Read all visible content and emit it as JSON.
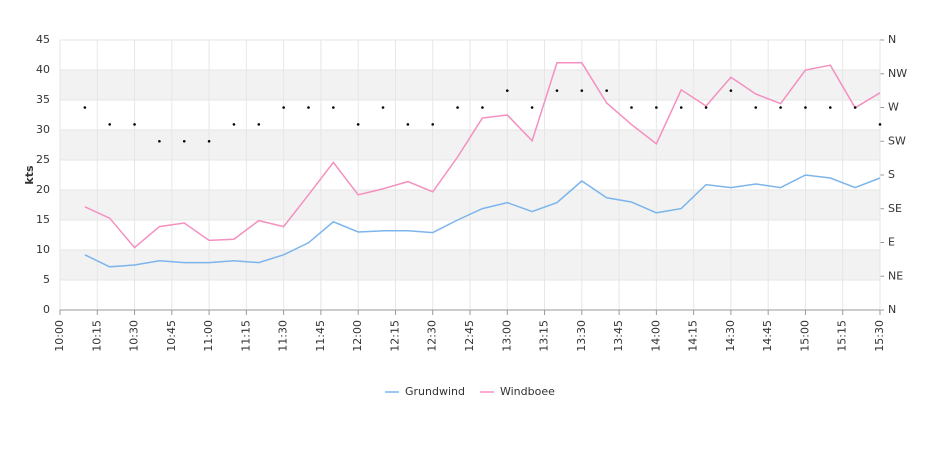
{
  "chart_data": {
    "type": "line",
    "y_label": "kts",
    "x": [
      "10:10",
      "10:20",
      "10:30",
      "10:40",
      "10:50",
      "11:00",
      "11:10",
      "11:20",
      "11:30",
      "11:40",
      "11:50",
      "12:00",
      "12:10",
      "12:20",
      "12:30",
      "12:40",
      "12:50",
      "13:00",
      "13:10",
      "13:20",
      "13:30",
      "13:40",
      "13:50",
      "14:00",
      "14:10",
      "14:20",
      "14:30",
      "14:40",
      "14:50",
      "15:00",
      "15:10",
      "15:20",
      "15:30"
    ],
    "xlim": [
      "10:00",
      "15:30"
    ],
    "xticks": [
      "10:00",
      "10:15",
      "10:30",
      "10:45",
      "11:00",
      "11:15",
      "11:30",
      "11:45",
      "12:00",
      "12:15",
      "12:30",
      "12:45",
      "13:00",
      "13:15",
      "13:30",
      "13:45",
      "14:00",
      "14:15",
      "14:30",
      "14:45",
      "15:00",
      "15:15",
      "15:30"
    ],
    "ylim": [
      0,
      45
    ],
    "yticks": [
      0,
      5,
      10,
      15,
      20,
      25,
      30,
      35,
      40,
      45
    ],
    "y2lim": [
      0,
      360
    ],
    "y2ticks": [
      {
        "value": 0,
        "label": "N"
      },
      {
        "value": 45,
        "label": "NE"
      },
      {
        "value": 90,
        "label": "E"
      },
      {
        "value": 135,
        "label": "SE"
      },
      {
        "value": 180,
        "label": "S"
      },
      {
        "value": 225,
        "label": "SW"
      },
      {
        "value": 270,
        "label": "W"
      },
      {
        "value": 315,
        "label": "NW"
      },
      {
        "value": 360,
        "label": "N"
      }
    ],
    "alternate_bands": true,
    "series": [
      {
        "name": "Grundwind",
        "color": "#7cb5ec",
        "values": [
          9.2,
          7.2,
          7.5,
          8.2,
          7.9,
          7.9,
          8.2,
          7.9,
          9.2,
          11.2,
          14.7,
          13.0,
          13.2,
          13.2,
          12.9,
          15.0,
          16.9,
          17.9,
          16.4,
          17.9,
          21.5,
          18.7,
          18.0,
          16.2,
          16.9,
          20.9,
          20.4,
          21.0,
          20.4,
          22.5,
          22.0,
          20.4,
          22.0
        ]
      },
      {
        "name": "Windboee",
        "color": "#f490c0",
        "values": [
          17.2,
          15.3,
          10.4,
          13.9,
          14.5,
          11.6,
          11.8,
          14.9,
          13.9,
          19.2,
          24.6,
          19.2,
          20.2,
          21.4,
          19.7,
          25.5,
          32.0,
          32.5,
          28.2,
          41.2,
          41.2,
          34.5,
          30.9,
          27.7,
          36.7,
          34.0,
          38.8,
          36.0,
          34.4,
          40.0,
          40.8,
          33.7,
          36.2
        ]
      },
      {
        "type": "scatter",
        "axis": "y2",
        "color": "#000000",
        "values": [
          270,
          247.5,
          247.5,
          225,
          225,
          225,
          247.5,
          247.5,
          270,
          270,
          270,
          247.5,
          270,
          247.5,
          247.5,
          270,
          270,
          292.5,
          270,
          292.5,
          292.5,
          292.5,
          270,
          270,
          270,
          270,
          292.5,
          270,
          270,
          270,
          270,
          270,
          247.5
        ]
      }
    ]
  }
}
